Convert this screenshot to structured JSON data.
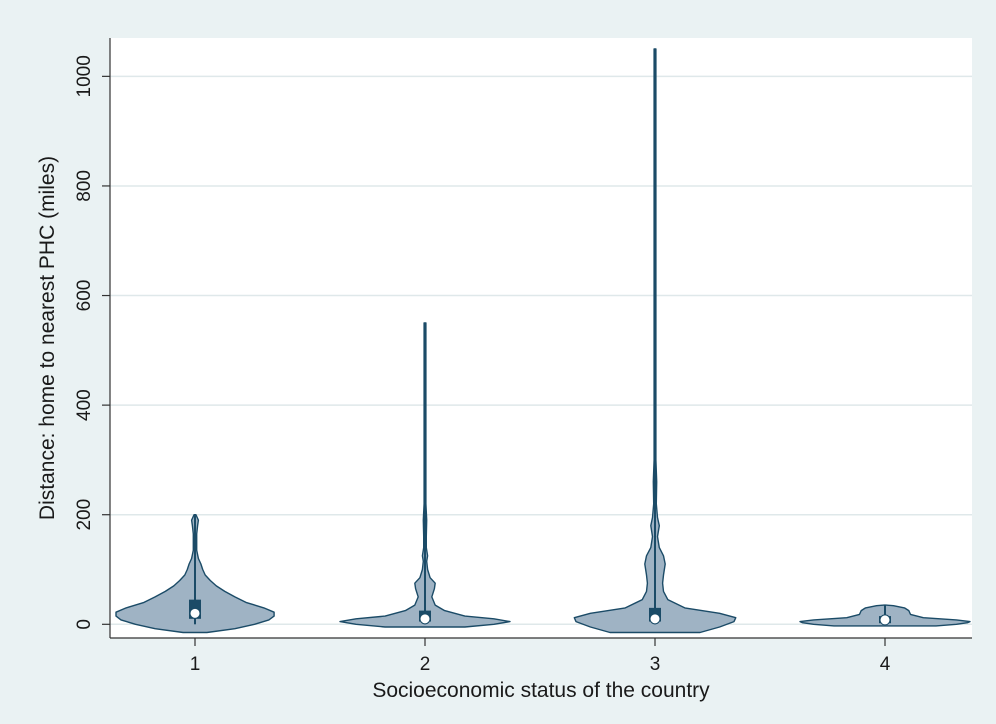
{
  "chart_data": {
    "type": "violin",
    "title": "",
    "xlabel": "Socioeconomic status of the country",
    "ylabel": "Distance: home to nearest PHC (miles)",
    "categories": [
      "1",
      "2",
      "3",
      "4"
    ],
    "ylim": [
      -25,
      1070
    ],
    "yticks": [
      0,
      200,
      400,
      600,
      800,
      1000
    ],
    "grid": true,
    "legend": "none",
    "colors": {
      "background": "#eaf2f3",
      "plot_background": "#ffffff",
      "grid": "#dfe8ea",
      "violin_fill": "#9fb3c4",
      "violin_edge": "#1b4b67",
      "box": "#1b4b67",
      "median_marker": "#ffffff"
    },
    "series": [
      {
        "category": "1",
        "min": 0,
        "max": 200,
        "q1": 10,
        "median": 20,
        "q3": 45,
        "density": [
          [
            -15,
            0.14
          ],
          [
            -8,
            0.47
          ],
          [
            0,
            0.7
          ],
          [
            8,
            0.87
          ],
          [
            15,
            0.93
          ],
          [
            22,
            0.93
          ],
          [
            30,
            0.81
          ],
          [
            40,
            0.6
          ],
          [
            50,
            0.47
          ],
          [
            60,
            0.35
          ],
          [
            70,
            0.25
          ],
          [
            80,
            0.18
          ],
          [
            90,
            0.12
          ],
          [
            100,
            0.09
          ],
          [
            110,
            0.07
          ],
          [
            120,
            0.04
          ],
          [
            135,
            0.02
          ],
          [
            150,
            0.02
          ],
          [
            165,
            0.02
          ],
          [
            180,
            0.03
          ],
          [
            190,
            0.04
          ],
          [
            197,
            0.02
          ],
          [
            200,
            0
          ]
        ]
      },
      {
        "category": "2",
        "min": 0,
        "max": 550,
        "q1": 5,
        "median": 10,
        "q3": 25,
        "density": [
          [
            -5,
            0.47
          ],
          [
            0,
            0.81
          ],
          [
            5,
            1.0
          ],
          [
            10,
            0.81
          ],
          [
            15,
            0.47
          ],
          [
            25,
            0.23
          ],
          [
            35,
            0.12
          ],
          [
            50,
            0.08
          ],
          [
            65,
            0.11
          ],
          [
            75,
            0.12
          ],
          [
            85,
            0.06
          ],
          [
            100,
            0.03
          ],
          [
            115,
            0.02
          ],
          [
            125,
            0.03
          ],
          [
            140,
            0.015
          ],
          [
            160,
            0.015
          ],
          [
            190,
            0.02
          ],
          [
            220,
            0.008
          ],
          [
            300,
            0.006
          ],
          [
            400,
            0.008
          ],
          [
            500,
            0.006
          ],
          [
            550,
            0
          ]
        ]
      },
      {
        "category": "3",
        "min": 0,
        "max": 1050,
        "q1": 5,
        "median": 10,
        "q3": 30,
        "density": [
          [
            -15,
            0.53
          ],
          [
            -5,
            0.76
          ],
          [
            5,
            0.93
          ],
          [
            12,
            0.95
          ],
          [
            20,
            0.76
          ],
          [
            30,
            0.35
          ],
          [
            45,
            0.15
          ],
          [
            60,
            0.1
          ],
          [
            75,
            0.09
          ],
          [
            90,
            0.1
          ],
          [
            110,
            0.12
          ],
          [
            125,
            0.1
          ],
          [
            140,
            0.05
          ],
          [
            160,
            0.03
          ],
          [
            180,
            0.05
          ],
          [
            195,
            0.03
          ],
          [
            220,
            0.015
          ],
          [
            260,
            0.02
          ],
          [
            300,
            0.008
          ],
          [
            400,
            0.006
          ],
          [
            600,
            0.006
          ],
          [
            800,
            0.006
          ],
          [
            1000,
            0.006
          ],
          [
            1050,
            0
          ]
        ]
      },
      {
        "category": "4",
        "min": 0,
        "max": 35,
        "q1": 2,
        "median": 8,
        "q3": 15,
        "density": [
          [
            -3,
            0.6
          ],
          [
            0,
            0.84
          ],
          [
            3,
            0.97
          ],
          [
            5,
            1.0
          ],
          [
            8,
            0.84
          ],
          [
            12,
            0.45
          ],
          [
            18,
            0.3
          ],
          [
            25,
            0.28
          ],
          [
            30,
            0.23
          ],
          [
            34,
            0.1
          ],
          [
            35,
            0
          ]
        ]
      }
    ]
  }
}
